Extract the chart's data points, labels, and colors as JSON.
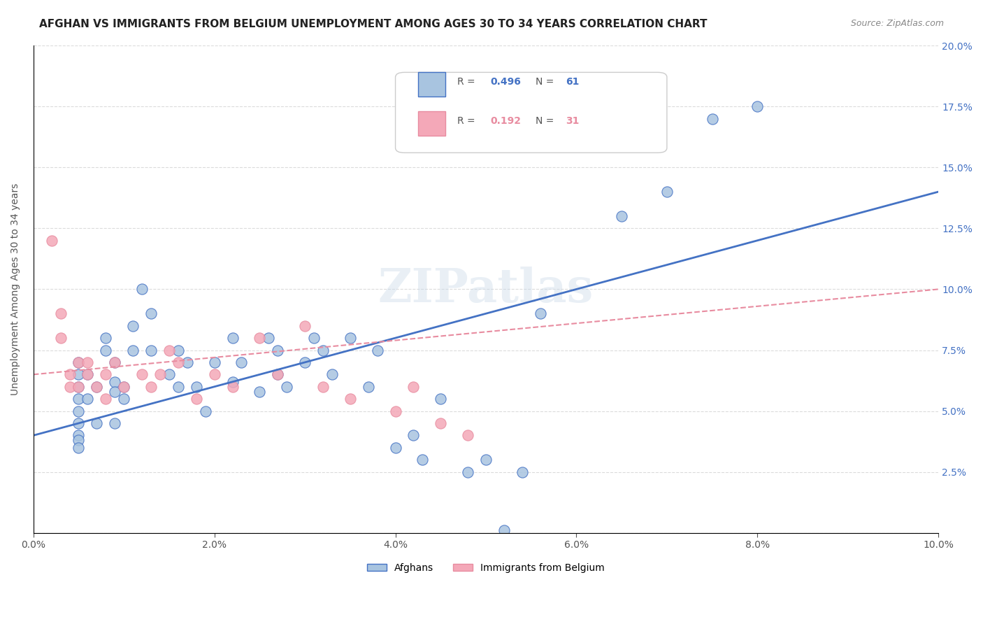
{
  "title": "AFGHAN VS IMMIGRANTS FROM BELGIUM UNEMPLOYMENT AMONG AGES 30 TO 34 YEARS CORRELATION CHART",
  "source": "Source: ZipAtlas.com",
  "xlabel": "",
  "ylabel": "Unemployment Among Ages 30 to 34 years",
  "legend_label1": "Afghans",
  "legend_label2": "Immigrants from Belgium",
  "r1": 0.496,
  "n1": 61,
  "r2": 0.192,
  "n2": 31,
  "color1": "#a8c4e0",
  "color2": "#f4a8b8",
  "line_color1": "#4472c4",
  "line_color2": "#e88ca0",
  "xlim": [
    0.0,
    0.1
  ],
  "ylim": [
    0.0,
    0.2
  ],
  "xticks": [
    0.0,
    0.02,
    0.04,
    0.06,
    0.08,
    0.1
  ],
  "yticks": [
    0.0,
    0.025,
    0.05,
    0.075,
    0.1,
    0.125,
    0.15,
    0.175,
    0.2
  ],
  "background_color": "#ffffff",
  "scatter1_x": [
    0.005,
    0.005,
    0.005,
    0.005,
    0.005,
    0.005,
    0.005,
    0.005,
    0.005,
    0.006,
    0.006,
    0.007,
    0.007,
    0.008,
    0.008,
    0.009,
    0.009,
    0.009,
    0.009,
    0.01,
    0.01,
    0.011,
    0.011,
    0.012,
    0.013,
    0.013,
    0.015,
    0.016,
    0.016,
    0.017,
    0.018,
    0.019,
    0.02,
    0.022,
    0.022,
    0.023,
    0.025,
    0.026,
    0.027,
    0.027,
    0.028,
    0.03,
    0.031,
    0.032,
    0.033,
    0.035,
    0.037,
    0.038,
    0.04,
    0.042,
    0.043,
    0.045,
    0.048,
    0.05,
    0.052,
    0.054,
    0.056,
    0.065,
    0.07,
    0.075,
    0.08
  ],
  "scatter1_y": [
    0.065,
    0.07,
    0.06,
    0.055,
    0.05,
    0.045,
    0.04,
    0.038,
    0.035,
    0.055,
    0.065,
    0.045,
    0.06,
    0.075,
    0.08,
    0.062,
    0.07,
    0.058,
    0.045,
    0.06,
    0.055,
    0.075,
    0.085,
    0.1,
    0.09,
    0.075,
    0.065,
    0.06,
    0.075,
    0.07,
    0.06,
    0.05,
    0.07,
    0.08,
    0.062,
    0.07,
    0.058,
    0.08,
    0.075,
    0.065,
    0.06,
    0.07,
    0.08,
    0.075,
    0.065,
    0.08,
    0.06,
    0.075,
    0.035,
    0.04,
    0.03,
    0.055,
    0.025,
    0.03,
    0.001,
    0.025,
    0.09,
    0.13,
    0.14,
    0.17,
    0.175
  ],
  "scatter2_x": [
    0.002,
    0.003,
    0.003,
    0.004,
    0.004,
    0.005,
    0.005,
    0.006,
    0.006,
    0.007,
    0.008,
    0.008,
    0.009,
    0.01,
    0.012,
    0.013,
    0.014,
    0.015,
    0.016,
    0.018,
    0.02,
    0.022,
    0.025,
    0.027,
    0.03,
    0.032,
    0.035,
    0.04,
    0.042,
    0.045,
    0.048
  ],
  "scatter2_y": [
    0.12,
    0.09,
    0.08,
    0.06,
    0.065,
    0.07,
    0.06,
    0.065,
    0.07,
    0.06,
    0.065,
    0.055,
    0.07,
    0.06,
    0.065,
    0.06,
    0.065,
    0.075,
    0.07,
    0.055,
    0.065,
    0.06,
    0.08,
    0.065,
    0.085,
    0.06,
    0.055,
    0.05,
    0.06,
    0.045,
    0.04
  ],
  "slope1": 1.0,
  "intercept1": 0.04,
  "slope2": 0.35,
  "intercept2": 0.065
}
